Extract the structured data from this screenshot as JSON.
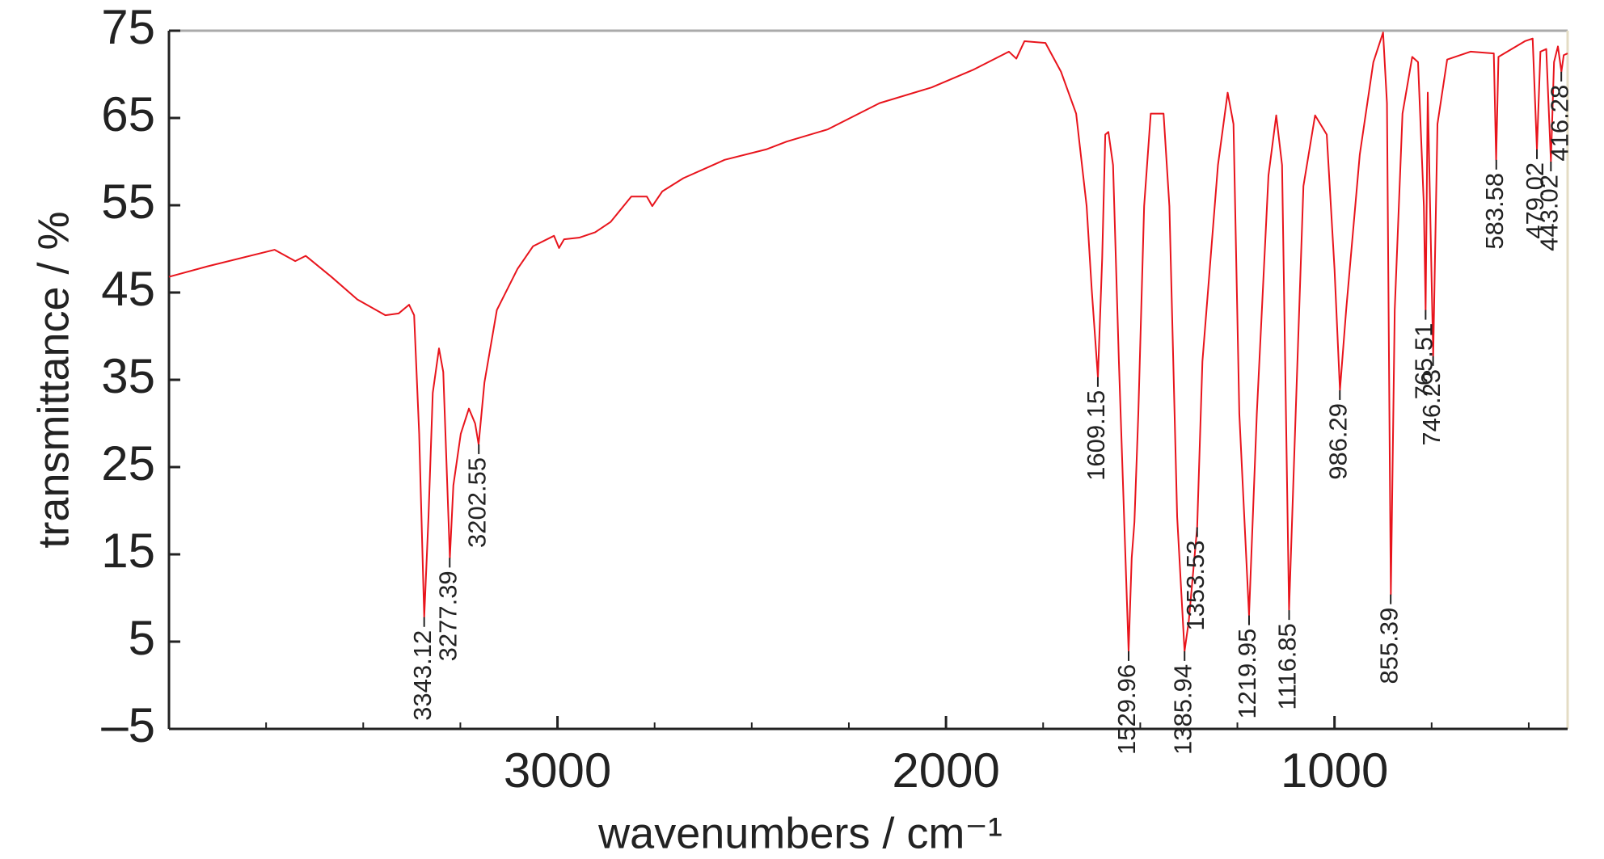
{
  "chart_data": {
    "type": "line",
    "x_label": "wavenumbers / cm⁻¹",
    "y_label": "transmittance / %",
    "xlim": [
      4000,
      400
    ],
    "ylim": [
      -5,
      75
    ],
    "xticks": [
      3000,
      2000,
      1000
    ],
    "xminor_ticks": [
      3750,
      3500,
      3250,
      2750,
      2500,
      2250,
      1750,
      1500,
      1250,
      750,
      500
    ],
    "yticks": [
      {
        "value": -5,
        "label": "–5"
      },
      5,
      15,
      25,
      35,
      45,
      55,
      65,
      75
    ],
    "series": [
      {
        "color": "#e8141c",
        "x": [
          4000,
          3901,
          3728,
          3675,
          3648,
          3582,
          3515,
          3443,
          3409,
          3382,
          3369,
          3356,
          3343,
          3332,
          3321,
          3305,
          3294,
          3277,
          3268,
          3249,
          3228,
          3212,
          3203,
          3188,
          3156,
          3103,
          3063,
          3009,
          2996,
          2983,
          2943,
          2903,
          2863,
          2810,
          2770,
          2756,
          2730,
          2676,
          2570,
          2463,
          2410,
          2304,
          2171,
          2037,
          1931,
          1838,
          1819,
          1798,
          1744,
          1704,
          1665,
          1638,
          1625,
          1609,
          1598,
          1590,
          1582,
          1570,
          1555,
          1530,
          1522,
          1515,
          1505,
          1490,
          1473,
          1440,
          1425,
          1405,
          1386,
          1375,
          1353.5,
          1340,
          1300,
          1275,
          1260,
          1245,
          1220,
          1200,
          1170,
          1150,
          1135,
          1117,
          1100,
          1080,
          1050,
          1020,
          1000,
          986,
          970,
          935,
          900,
          875,
          865,
          855,
          845,
          825,
          800,
          785,
          770,
          765.5,
          760,
          746,
          735,
          710,
          650,
          590,
          584,
          578,
          510,
          490,
          479,
          470,
          455,
          443,
          435,
          425,
          416,
          410,
          400
        ],
        "values": [
          46.8,
          48.0,
          49.9,
          48.6,
          49.2,
          46.8,
          44.2,
          42.4,
          42.6,
          43.6,
          42.4,
          28.8,
          7.8,
          19.3,
          33.5,
          38.6,
          35.9,
          14.6,
          22.9,
          28.8,
          31.7,
          30.0,
          27.6,
          34.7,
          43.0,
          47.7,
          50.3,
          51.5,
          50.1,
          51.1,
          51.3,
          51.9,
          53.1,
          56.0,
          56.0,
          54.9,
          56.6,
          58.1,
          60.2,
          61.4,
          62.3,
          63.7,
          66.7,
          68.5,
          70.5,
          72.6,
          71.8,
          73.8,
          73.6,
          70.3,
          65.5,
          54.9,
          45.4,
          35.3,
          48.9,
          63.1,
          63.4,
          59.6,
          37.1,
          3.9,
          14.6,
          18.7,
          31.1,
          54.9,
          65.5,
          65.5,
          54.9,
          19.3,
          3.9,
          7.4,
          18.1,
          37.1,
          59.6,
          67.9,
          64.3,
          31.1,
          8.0,
          31.1,
          58.4,
          65.3,
          59.6,
          8.6,
          31.1,
          57.2,
          65.3,
          63.1,
          47.7,
          33.8,
          43.0,
          60.8,
          71.4,
          74.8,
          66.7,
          10.4,
          43.0,
          65.5,
          72.0,
          71.4,
          54.9,
          43.0,
          67.9,
          37.7,
          64.3,
          71.7,
          72.6,
          72.4,
          60.2,
          72.0,
          73.8,
          74.1,
          61.4,
          72.6,
          72.9,
          60.0,
          71.4,
          73.2,
          70.3,
          72.2,
          72.4
        ]
      }
    ],
    "peaks": [
      {
        "x": 3343.12,
        "y": 7.8
      },
      {
        "x": 3277.39,
        "y": 14.6
      },
      {
        "x": 3202.55,
        "y": 27.6
      },
      {
        "x": 1609.15,
        "y": 35.3
      },
      {
        "x": 1529.96,
        "y": 3.9
      },
      {
        "x": 1385.94,
        "y": 3.9
      },
      {
        "x": 1353.53,
        "y": 18.1
      },
      {
        "x": 1219.95,
        "y": 8.0
      },
      {
        "x": 1116.85,
        "y": 8.6
      },
      {
        "x": 986.29,
        "y": 33.8
      },
      {
        "x": 855.39,
        "y": 10.4
      },
      {
        "x": 765.51,
        "y": 43.0
      },
      {
        "x": 746.23,
        "y": 37.7
      },
      {
        "x": 583.58,
        "y": 60.2
      },
      {
        "x": 479.02,
        "y": 61.4
      },
      {
        "x": 443.02,
        "y": 60.0
      },
      {
        "x": 416.28,
        "y": 70.3
      }
    ]
  }
}
